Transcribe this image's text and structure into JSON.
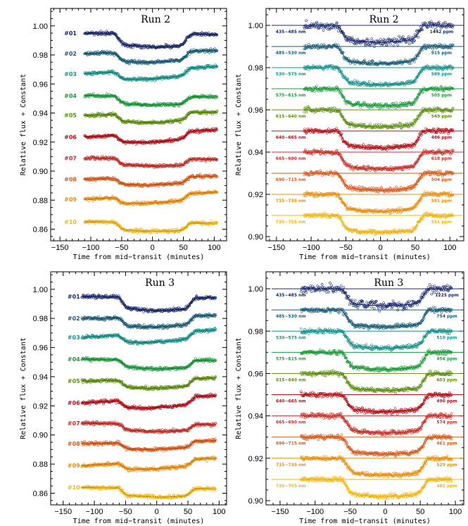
{
  "chart_data": [
    {
      "type": "scatter",
      "title": "Run 2",
      "xlabel": "Time from mid−transit (minutes)",
      "ylabel": "Relative flux + Constant",
      "xlim": [
        -165,
        120
      ],
      "ylim": [
        0.852,
        1.012
      ],
      "xticks": [
        -150,
        -100,
        -50,
        0,
        50,
        100
      ],
      "xtick_labels": [
        "−150",
        "−100",
        "−50",
        "0",
        "50",
        "100"
      ],
      "yticks": [
        0.86,
        0.88,
        0.9,
        0.92,
        0.94,
        0.96,
        0.98,
        1.0
      ],
      "ytick_labels": [
        "0.86",
        "0.88",
        "0.90",
        "0.92",
        "0.94",
        "0.96",
        "0.98",
        "1.00"
      ],
      "grid": false,
      "style": "raw",
      "t_range": [
        -110,
        105
      ],
      "transit_edges": [
        -55,
        55
      ],
      "series": [
        {
          "name": "#01",
          "offset": 0.995,
          "depth": 0.009,
          "color": "#1b2a6e"
        },
        {
          "name": "#02",
          "offset": 0.981,
          "depth": 0.007,
          "color": "#1a5d7a"
        },
        {
          "name": "#03",
          "offset": 0.967,
          "depth": 0.006,
          "color": "#16938a"
        },
        {
          "name": "#04",
          "offset": 0.952,
          "depth": 0.006,
          "color": "#1f9a3f"
        },
        {
          "name": "#05",
          "offset": 0.9385,
          "depth": 0.006,
          "color": "#5e8f12"
        },
        {
          "name": "#06",
          "offset": 0.9235,
          "depth": 0.006,
          "color": "#b5121b"
        },
        {
          "name": "#07",
          "offset": 0.909,
          "depth": 0.005,
          "color": "#c6312a"
        },
        {
          "name": "#08",
          "offset": 0.8945,
          "depth": 0.005,
          "color": "#d95a1a"
        },
        {
          "name": "#09",
          "offset": 0.8805,
          "depth": 0.005,
          "color": "#e88f12"
        },
        {
          "name": "#10",
          "offset": 0.865,
          "depth": 0.006,
          "color": "#f0b414"
        }
      ]
    },
    {
      "type": "scatter",
      "title": "Run 2",
      "xlabel": "Time from mid−transit (minutes)",
      "ylabel": "Relative flux + Constant",
      "xlim": [
        -165,
        120
      ],
      "ylim": [
        0.898,
        1.008
      ],
      "xticks": [
        -150,
        -100,
        -50,
        0,
        50,
        100
      ],
      "xtick_labels": [
        "−150",
        "−100",
        "−50",
        "0",
        "50",
        "100"
      ],
      "yticks": [
        0.9,
        0.92,
        0.94,
        0.96,
        0.98,
        1.0
      ],
      "ytick_labels": [
        "0.90",
        "0.92",
        "0.94",
        "0.96",
        "0.98",
        "1.00"
      ],
      "grid": false,
      "style": "detrended",
      "t_range": [
        -110,
        105
      ],
      "transit_edges": [
        -55,
        55
      ],
      "series": [
        {
          "name": "435−485 nm",
          "depth_label": "1442 ppm",
          "offset": 1.0,
          "depth": 0.008,
          "color": "#1b2a6e"
        },
        {
          "name": "485−530 nm",
          "depth_label": "915 ppm",
          "offset": 0.99,
          "depth": 0.008,
          "color": "#1a5d7a"
        },
        {
          "name": "530−575 nm",
          "depth_label": "589 ppm",
          "offset": 0.98,
          "depth": 0.008,
          "color": "#16938a"
        },
        {
          "name": "575−615 nm",
          "depth_label": "505 ppm",
          "offset": 0.97,
          "depth": 0.008,
          "color": "#1f9a3f"
        },
        {
          "name": "615−640 nm",
          "depth_label": "549 ppm",
          "offset": 0.96,
          "depth": 0.008,
          "color": "#5e8f12"
        },
        {
          "name": "640−665 nm",
          "depth_label": "486 ppm",
          "offset": 0.95,
          "depth": 0.008,
          "color": "#b5121b"
        },
        {
          "name": "665−690 nm",
          "depth_label": "618 ppm",
          "offset": 0.94,
          "depth": 0.008,
          "color": "#c6312a"
        },
        {
          "name": "690−715 nm",
          "depth_label": "504 ppm",
          "offset": 0.93,
          "depth": 0.008,
          "color": "#d95a1a"
        },
        {
          "name": "715−735 nm",
          "depth_label": "581 ppm",
          "offset": 0.92,
          "depth": 0.008,
          "color": "#e88f12"
        },
        {
          "name": "735−755 nm",
          "depth_label": "551 ppm",
          "offset": 0.91,
          "depth": 0.008,
          "color": "#f0b414"
        }
      ]
    },
    {
      "type": "scatter",
      "title": "Run 3",
      "xlabel": "Time from mid−transit (minutes)",
      "ylabel": "Relative flux + Constant",
      "xlim": [
        -170,
        112
      ],
      "ylim": [
        0.852,
        1.012
      ],
      "xticks": [
        -150,
        -100,
        -50,
        0,
        50,
        100
      ],
      "xtick_labels": [
        "−150",
        "−100",
        "−50",
        "0",
        "50",
        "100"
      ],
      "yticks": [
        0.86,
        0.88,
        0.9,
        0.92,
        0.94,
        0.96,
        0.98,
        1.0
      ],
      "ytick_labels": [
        "0.86",
        "0.88",
        "0.90",
        "0.92",
        "0.94",
        "0.96",
        "0.98",
        "1.00"
      ],
      "grid": false,
      "style": "raw",
      "t_range": [
        -120,
        95
      ],
      "transit_edges": [
        -55,
        55
      ],
      "series": [
        {
          "name": "#01",
          "offset": 0.995,
          "depth": 0.009,
          "color": "#1b2a6e"
        },
        {
          "name": "#02",
          "offset": 0.98,
          "depth": 0.007,
          "color": "#1a5d7a"
        },
        {
          "name": "#03",
          "offset": 0.967,
          "depth": 0.006,
          "color": "#16938a"
        },
        {
          "name": "#04",
          "offset": 0.952,
          "depth": 0.006,
          "color": "#1f9a3f"
        },
        {
          "name": "#05",
          "offset": 0.937,
          "depth": 0.006,
          "color": "#5e8f12"
        },
        {
          "name": "#06",
          "offset": 0.922,
          "depth": 0.006,
          "color": "#b5121b"
        },
        {
          "name": "#07",
          "offset": 0.908,
          "depth": 0.005,
          "color": "#c6312a"
        },
        {
          "name": "#08",
          "offset": 0.894,
          "depth": 0.005,
          "color": "#d95a1a"
        },
        {
          "name": "#09",
          "offset": 0.879,
          "depth": 0.005,
          "color": "#e88f12"
        },
        {
          "name": "#10",
          "offset": 0.864,
          "depth": 0.006,
          "color": "#f0b414"
        }
      ]
    },
    {
      "type": "scatter",
      "title": "Run 3",
      "xlabel": "Time from mid−transit (minutes)",
      "ylabel": "Relative flux + Constant",
      "xlim": [
        -170,
        112
      ],
      "ylim": [
        0.898,
        1.008
      ],
      "xticks": [
        -150,
        -100,
        -50,
        0,
        50,
        100
      ],
      "xtick_labels": [
        "−150",
        "−100",
        "−50",
        "0",
        "50",
        "100"
      ],
      "yticks": [
        0.9,
        0.92,
        0.94,
        0.96,
        0.98,
        1.0
      ],
      "ytick_labels": [
        "0.90",
        "0.92",
        "0.94",
        "0.96",
        "0.98",
        "1.00"
      ],
      "grid": false,
      "style": "detrended",
      "t_range": [
        -120,
        95
      ],
      "transit_edges": [
        -55,
        55
      ],
      "series": [
        {
          "name": "435−485 nm",
          "depth_label": "1225 ppm",
          "offset": 1.0,
          "depth": 0.008,
          "color": "#1b2a6e"
        },
        {
          "name": "485−530 nm",
          "depth_label": "754 ppm",
          "offset": 0.99,
          "depth": 0.008,
          "color": "#1a5d7a"
        },
        {
          "name": "530−575 nm",
          "depth_label": "510 ppm",
          "offset": 0.98,
          "depth": 0.008,
          "color": "#16938a"
        },
        {
          "name": "575−615 nm",
          "depth_label": "456 ppm",
          "offset": 0.97,
          "depth": 0.008,
          "color": "#1f9a3f"
        },
        {
          "name": "615−640 nm",
          "depth_label": "603 ppm",
          "offset": 0.96,
          "depth": 0.008,
          "color": "#5e8f12"
        },
        {
          "name": "640−665 nm",
          "depth_label": "490 ppm",
          "offset": 0.95,
          "depth": 0.008,
          "color": "#b5121b"
        },
        {
          "name": "665−690 nm",
          "depth_label": "574 ppm",
          "offset": 0.94,
          "depth": 0.008,
          "color": "#c6312a"
        },
        {
          "name": "690−715 nm",
          "depth_label": "461 ppm",
          "offset": 0.93,
          "depth": 0.008,
          "color": "#d95a1a"
        },
        {
          "name": "715−735 nm",
          "depth_label": "529 ppm",
          "offset": 0.92,
          "depth": 0.008,
          "color": "#e88f12"
        },
        {
          "name": "735−755 nm",
          "depth_label": "482 ppm",
          "offset": 0.91,
          "depth": 0.008,
          "color": "#f0b414"
        }
      ]
    }
  ]
}
